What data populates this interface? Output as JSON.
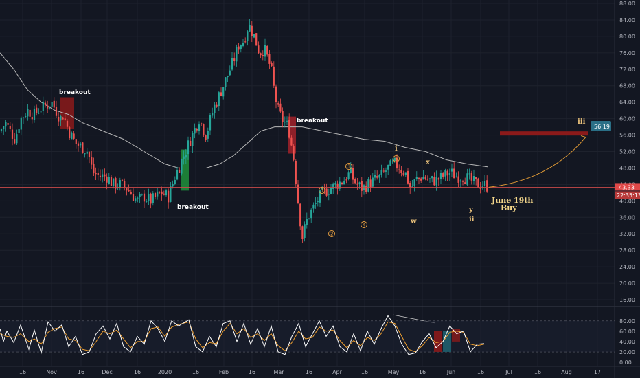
{
  "colors": {
    "background": "#131722",
    "grid": "#1e222d",
    "up": "#26a69a",
    "down": "#ef5350",
    "ma": "#b8b8b8",
    "price_line": "#c94a4a",
    "stoch_k": "#ffffff",
    "stoch_d": "#f0a030",
    "annotation": "#e8c07a",
    "target": "#2a6f86",
    "resistance": "#8b1a1a"
  },
  "chart_data": {
    "type": "candlestick",
    "price_axis": {
      "ticks": [
        "88.00",
        "84.00",
        "80.00",
        "76.00",
        "72.00",
        "68.00",
        "64.00",
        "60.00",
        "56.00",
        "52.00",
        "48.00",
        "44.00",
        "40.00",
        "36.00",
        "32.00",
        "28.00",
        "24.00",
        "20.00",
        "16.00"
      ],
      "ylim": [
        14,
        88
      ]
    },
    "indicator_axis": {
      "ticks": [
        "80.00",
        "60.00",
        "40.00",
        "20.00",
        "0.00"
      ],
      "ylim": [
        -8,
        105
      ],
      "bands": [
        80,
        20
      ]
    },
    "x_axis": {
      "ticks": [
        "16",
        "Nov",
        "16",
        "Dec",
        "16",
        "2020",
        "16",
        "Feb",
        "16",
        "Mar",
        "16",
        "Apr",
        "16",
        "May",
        "16",
        "Jun",
        "16",
        "Jul",
        "16",
        "Aug",
        "17"
      ]
    },
    "price_anchors": [
      [
        0,
        57
      ],
      [
        8,
        59
      ],
      [
        15,
        57
      ],
      [
        22,
        55
      ],
      [
        30,
        60
      ],
      [
        40,
        62
      ],
      [
        50,
        61
      ],
      [
        55,
        62
      ],
      [
        65,
        63
      ],
      [
        75,
        64
      ],
      [
        88,
        60
      ],
      [
        92,
        61
      ],
      [
        100,
        57
      ],
      [
        110,
        54
      ],
      [
        120,
        53
      ],
      [
        128,
        52
      ],
      [
        135,
        47
      ],
      [
        145,
        46
      ],
      [
        155,
        46
      ],
      [
        165,
        44
      ],
      [
        175,
        44
      ],
      [
        185,
        43
      ],
      [
        200,
        40
      ],
      [
        210,
        41
      ],
      [
        220,
        40
      ],
      [
        235,
        42
      ],
      [
        245,
        41
      ],
      [
        255,
        46
      ],
      [
        270,
        52
      ],
      [
        280,
        56
      ],
      [
        290,
        60
      ],
      [
        300,
        56
      ],
      [
        310,
        62
      ],
      [
        320,
        66
      ],
      [
        330,
        70
      ],
      [
        340,
        74
      ],
      [
        348,
        78
      ],
      [
        355,
        79
      ],
      [
        362,
        83
      ],
      [
        370,
        80
      ],
      [
        378,
        76
      ],
      [
        385,
        77
      ],
      [
        395,
        72
      ],
      [
        400,
        66
      ],
      [
        405,
        62
      ],
      [
        410,
        60
      ],
      [
        420,
        58
      ],
      [
        428,
        50
      ],
      [
        434,
        40
      ],
      [
        440,
        31
      ],
      [
        448,
        36
      ],
      [
        455,
        38
      ],
      [
        462,
        40
      ],
      [
        470,
        42
      ],
      [
        480,
        43
      ],
      [
        490,
        44
      ],
      [
        500,
        45
      ],
      [
        510,
        47
      ],
      [
        515,
        45
      ],
      [
        520,
        44
      ],
      [
        528,
        43
      ],
      [
        535,
        44
      ],
      [
        545,
        45
      ],
      [
        555,
        46
      ],
      [
        565,
        48
      ],
      [
        575,
        49
      ],
      [
        582,
        48
      ],
      [
        590,
        47
      ],
      [
        598,
        43
      ],
      [
        605,
        45
      ],
      [
        615,
        46
      ],
      [
        625,
        45
      ],
      [
        635,
        45
      ],
      [
        645,
        46
      ],
      [
        655,
        47
      ],
      [
        665,
        46
      ],
      [
        675,
        46
      ],
      [
        685,
        45
      ],
      [
        695,
        44
      ],
      [
        705,
        44
      ],
      [
        712,
        43.3
      ]
    ],
    "moving_average": [
      [
        0,
        76
      ],
      [
        20,
        72
      ],
      [
        40,
        67
      ],
      [
        60,
        64
      ],
      [
        80,
        62
      ],
      [
        100,
        61
      ],
      [
        120,
        59
      ],
      [
        150,
        57
      ],
      [
        180,
        55
      ],
      [
        210,
        52
      ],
      [
        240,
        49
      ],
      [
        260,
        48
      ],
      [
        280,
        48
      ],
      [
        300,
        48
      ],
      [
        320,
        49
      ],
      [
        340,
        51
      ],
      [
        360,
        54
      ],
      [
        380,
        57
      ],
      [
        400,
        58
      ],
      [
        420,
        58
      ],
      [
        440,
        58
      ],
      [
        470,
        57
      ],
      [
        500,
        56
      ],
      [
        530,
        55
      ],
      [
        560,
        54.5
      ],
      [
        590,
        53
      ],
      [
        620,
        52
      ],
      [
        650,
        50
      ],
      [
        680,
        49
      ],
      [
        710,
        48.3
      ]
    ],
    "stoch_k_anchors": [
      [
        0,
        65
      ],
      [
        5,
        40
      ],
      [
        10,
        60
      ],
      [
        20,
        38
      ],
      [
        30,
        72
      ],
      [
        42,
        25
      ],
      [
        50,
        62
      ],
      [
        60,
        18
      ],
      [
        70,
        78
      ],
      [
        80,
        60
      ],
      [
        90,
        72
      ],
      [
        100,
        30
      ],
      [
        110,
        50
      ],
      [
        120,
        15
      ],
      [
        130,
        20
      ],
      [
        140,
        55
      ],
      [
        150,
        70
      ],
      [
        160,
        45
      ],
      [
        170,
        75
      ],
      [
        180,
        30
      ],
      [
        190,
        20
      ],
      [
        200,
        50
      ],
      [
        210,
        35
      ],
      [
        220,
        80
      ],
      [
        230,
        65
      ],
      [
        240,
        40
      ],
      [
        250,
        80
      ],
      [
        260,
        70
      ],
      [
        275,
        82
      ],
      [
        285,
        30
      ],
      [
        295,
        20
      ],
      [
        305,
        50
      ],
      [
        315,
        30
      ],
      [
        325,
        75
      ],
      [
        335,
        80
      ],
      [
        345,
        40
      ],
      [
        355,
        75
      ],
      [
        365,
        35
      ],
      [
        375,
        65
      ],
      [
        385,
        30
      ],
      [
        395,
        70
      ],
      [
        405,
        20
      ],
      [
        415,
        15
      ],
      [
        425,
        50
      ],
      [
        435,
        75
      ],
      [
        445,
        30
      ],
      [
        455,
        55
      ],
      [
        465,
        80
      ],
      [
        475,
        50
      ],
      [
        485,
        70
      ],
      [
        495,
        30
      ],
      [
        505,
        20
      ],
      [
        515,
        55
      ],
      [
        525,
        22
      ],
      [
        535,
        60
      ],
      [
        545,
        35
      ],
      [
        555,
        65
      ],
      [
        565,
        90
      ],
      [
        575,
        70
      ],
      [
        585,
        35
      ],
      [
        595,
        15
      ],
      [
        605,
        18
      ],
      [
        615,
        40
      ],
      [
        625,
        55
      ],
      [
        635,
        28
      ],
      [
        645,
        40
      ],
      [
        655,
        70
      ],
      [
        665,
        55
      ],
      [
        675,
        60
      ],
      [
        685,
        20
      ],
      [
        695,
        35
      ],
      [
        705,
        36
      ]
    ],
    "stoch_d_anchors": [
      [
        0,
        55
      ],
      [
        10,
        50
      ],
      [
        20,
        48
      ],
      [
        30,
        55
      ],
      [
        42,
        40
      ],
      [
        50,
        45
      ],
      [
        60,
        35
      ],
      [
        70,
        58
      ],
      [
        80,
        65
      ],
      [
        90,
        68
      ],
      [
        100,
        45
      ],
      [
        110,
        42
      ],
      [
        120,
        25
      ],
      [
        130,
        22
      ],
      [
        140,
        40
      ],
      [
        150,
        60
      ],
      [
        160,
        55
      ],
      [
        170,
        62
      ],
      [
        180,
        45
      ],
      [
        190,
        28
      ],
      [
        200,
        40
      ],
      [
        210,
        40
      ],
      [
        220,
        65
      ],
      [
        230,
        68
      ],
      [
        240,
        50
      ],
      [
        250,
        68
      ],
      [
        260,
        73
      ],
      [
        275,
        78
      ],
      [
        285,
        45
      ],
      [
        295,
        28
      ],
      [
        305,
        38
      ],
      [
        315,
        36
      ],
      [
        325,
        60
      ],
      [
        335,
        75
      ],
      [
        345,
        55
      ],
      [
        355,
        65
      ],
      [
        365,
        48
      ],
      [
        375,
        55
      ],
      [
        385,
        42
      ],
      [
        395,
        55
      ],
      [
        405,
        32
      ],
      [
        415,
        22
      ],
      [
        425,
        38
      ],
      [
        435,
        60
      ],
      [
        445,
        45
      ],
      [
        455,
        48
      ],
      [
        465,
        68
      ],
      [
        475,
        60
      ],
      [
        485,
        62
      ],
      [
        495,
        42
      ],
      [
        505,
        28
      ],
      [
        515,
        42
      ],
      [
        525,
        32
      ],
      [
        535,
        48
      ],
      [
        545,
        42
      ],
      [
        555,
        55
      ],
      [
        565,
        78
      ],
      [
        575,
        75
      ],
      [
        585,
        50
      ],
      [
        595,
        25
      ],
      [
        605,
        20
      ],
      [
        615,
        32
      ],
      [
        625,
        48
      ],
      [
        635,
        38
      ],
      [
        645,
        40
      ],
      [
        655,
        58
      ],
      [
        665,
        60
      ],
      [
        675,
        58
      ],
      [
        685,
        35
      ],
      [
        695,
        32
      ],
      [
        705,
        35
      ]
    ],
    "current_price": "43.33",
    "time_remaining": "22:35:13",
    "target_price": "56.19",
    "resistance_level": 56.4,
    "annotations": {
      "breakout_1": "breakout",
      "breakout_2": "breakout",
      "breakout_3": "breakout",
      "wave_1": "1",
      "wave_2": "2",
      "wave_3": "3",
      "wave_4": "4",
      "wave_5": "5",
      "wave_i": "i",
      "wave_w": "w",
      "wave_x": "x",
      "wave_y": "y",
      "wave_ii": "ii",
      "wave_iii": "iii",
      "buy_date": "June 19th",
      "buy_word": "Buy"
    }
  }
}
